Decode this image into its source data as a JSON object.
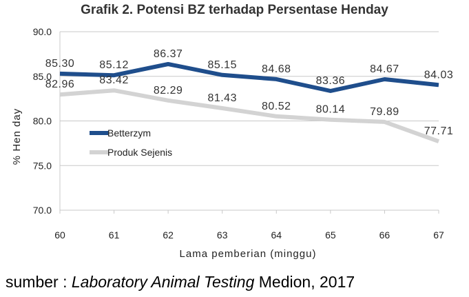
{
  "chart_data": {
    "type": "line",
    "title": "Grafik 2. Potensi BZ terhadap Persentase Henday",
    "xlabel": "Lama pemberian (minggu)",
    "ylabel": "% Hen day",
    "x": [
      60,
      61,
      62,
      63,
      64,
      65,
      66,
      67
    ],
    "x_tick_labels": [
      "60",
      "61",
      "62",
      "63",
      "64",
      "65",
      "66",
      "67"
    ],
    "ylim": [
      70,
      90
    ],
    "y_ticks": [
      70,
      75,
      80,
      85,
      90
    ],
    "y_tick_labels": [
      "70.0",
      "75.0",
      "80.0",
      "85.0",
      "90.0"
    ],
    "grid": "horizontal",
    "legend_position": "left-center",
    "series": [
      {
        "name": "Betterzym",
        "color": "#1f4e8c",
        "values": [
          85.3,
          85.12,
          86.37,
          85.15,
          84.68,
          83.36,
          84.67,
          84.03
        ],
        "labels": [
          "85.30",
          "85.12",
          "86.37",
          "85.15",
          "84.68",
          "83.36",
          "84.67",
          "84.03"
        ]
      },
      {
        "name": "Produk Sejenis",
        "color": "#d3d3d3",
        "values": [
          82.96,
          83.42,
          82.29,
          81.43,
          80.52,
          80.14,
          79.89,
          77.71
        ],
        "labels": [
          "82.96",
          "83.42",
          "82.29",
          "81.43",
          "80.52",
          "80.14",
          "79.89",
          "77.71"
        ]
      }
    ]
  },
  "source": {
    "prefix": "sumber : ",
    "title": "Laboratory Animal Testing",
    "suffix": " Medion, 2017"
  }
}
